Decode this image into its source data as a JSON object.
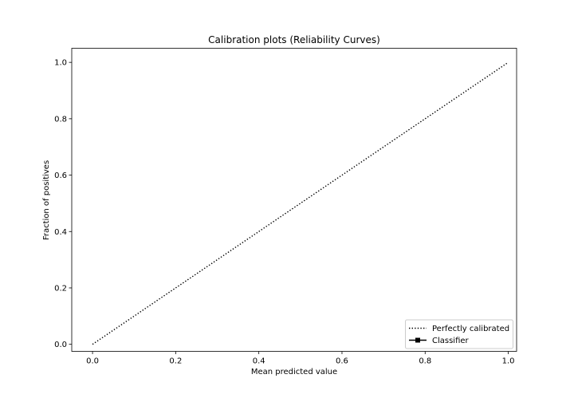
{
  "chart_data": {
    "type": "line",
    "title": "Calibration plots (Reliability Curves)",
    "xlabel": "Mean predicted value",
    "ylabel": "Fraction of positives",
    "xlim": [
      -0.05,
      1.02
    ],
    "ylim": [
      -0.025,
      1.05
    ],
    "xticks": [
      0.0,
      0.2,
      0.4,
      0.6,
      0.8,
      1.0
    ],
    "xtick_labels": [
      "0.0",
      "0.2",
      "0.4",
      "0.6",
      "0.8",
      "1.0"
    ],
    "yticks": [
      0.0,
      0.2,
      0.4,
      0.6,
      0.8,
      1.0
    ],
    "ytick_labels": [
      "0.0",
      "0.2",
      "0.4",
      "0.6",
      "0.8",
      "1.0"
    ],
    "grid": false,
    "legend_position": "lower-right",
    "series": [
      {
        "name": "Perfectly calibrated",
        "x": [
          0,
          1
        ],
        "y": [
          0,
          1
        ],
        "style": "dotted",
        "marker": "none",
        "color": "#000000"
      },
      {
        "name": "Classifier",
        "x": [],
        "y": [],
        "style": "solid",
        "marker": "square",
        "color": "#000000"
      }
    ]
  }
}
